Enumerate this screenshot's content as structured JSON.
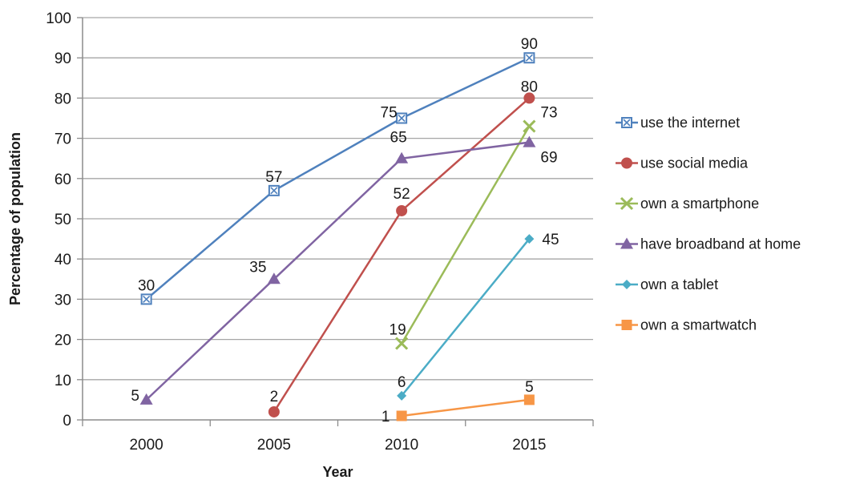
{
  "chart_data": {
    "type": "line",
    "title": "",
    "xlabel": "Year",
    "ylabel": "Percentage of population",
    "categories": [
      "2000",
      "2005",
      "2010",
      "2015"
    ],
    "ylim": [
      0,
      100
    ],
    "yticks": [
      "0",
      "10",
      "20",
      "30",
      "40",
      "50",
      "60",
      "70",
      "80",
      "90",
      "100"
    ],
    "grid": "horizontal",
    "legend_position": "right",
    "series": [
      {
        "name": "use the internet",
        "color": "#4f81bd",
        "marker": "square-x",
        "values": [
          30,
          57,
          75,
          90
        ],
        "labels": [
          "30",
          "57",
          "75",
          "90"
        ]
      },
      {
        "name": "use social media",
        "color": "#c0504d",
        "marker": "circle",
        "values": [
          null,
          2,
          52,
          80
        ],
        "labels": [
          "",
          "2",
          "52",
          "80"
        ]
      },
      {
        "name": "own a smartphone",
        "color": "#9bbb59",
        "marker": "x",
        "values": [
          null,
          null,
          19,
          73
        ],
        "labels": [
          "",
          "",
          "19",
          "73"
        ]
      },
      {
        "name": "have broadband at home",
        "color": "#8064a2",
        "marker": "triangle",
        "values": [
          5,
          35,
          65,
          69
        ],
        "labels": [
          "5",
          "35",
          "65",
          "69"
        ]
      },
      {
        "name": "own a tablet",
        "color": "#4bacc6",
        "marker": "diamond",
        "values": [
          null,
          null,
          6,
          45
        ],
        "labels": [
          "",
          "",
          "6",
          "45"
        ]
      },
      {
        "name": "own a smartwatch",
        "color": "#f79646",
        "marker": "square",
        "values": [
          null,
          null,
          1,
          5
        ],
        "labels": [
          "",
          "",
          "1",
          "5"
        ]
      }
    ]
  }
}
